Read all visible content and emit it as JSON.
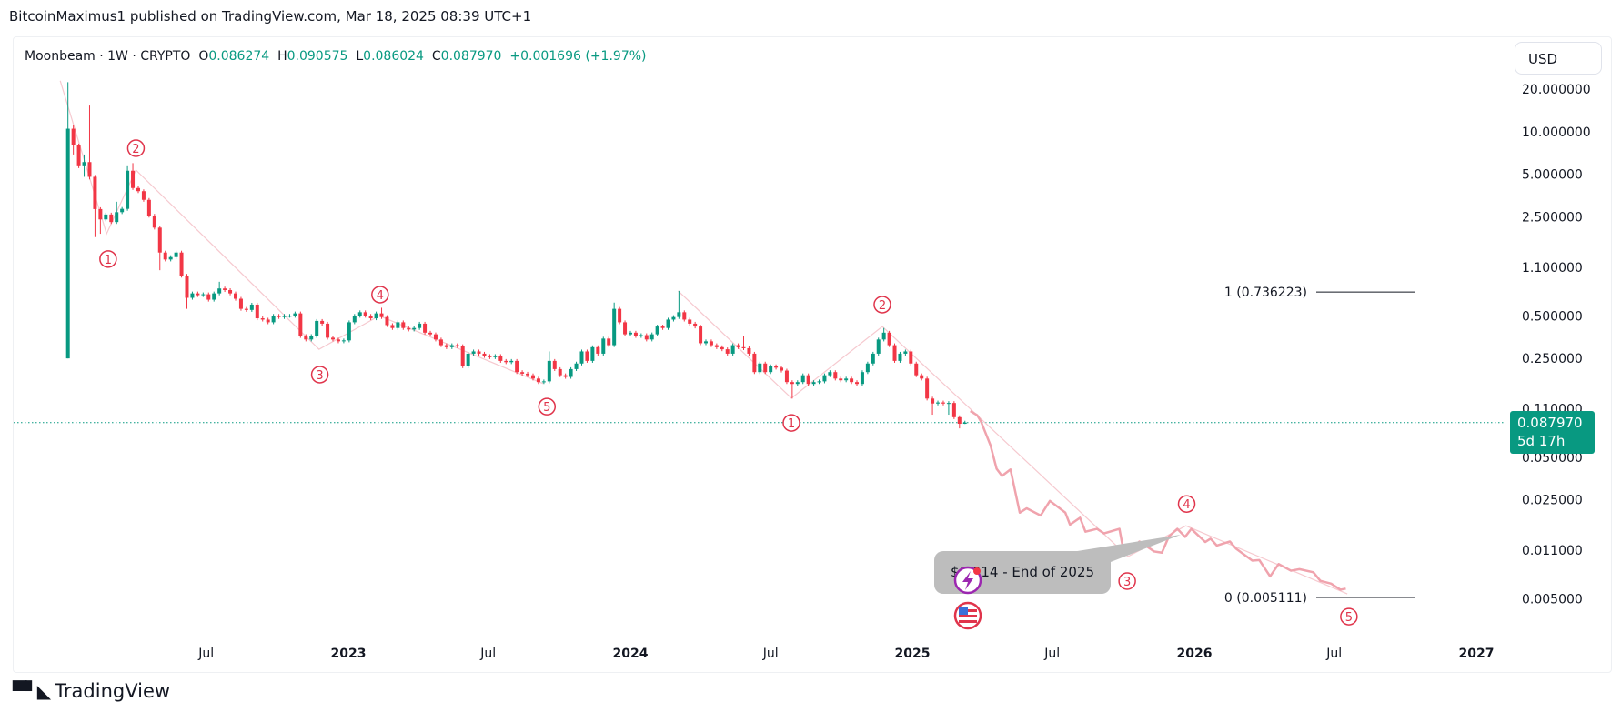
{
  "header": {
    "publisher_line": "BitcoinMaximus1 published on TradingView.com, Mar 18, 2025 08:39 UTC+1"
  },
  "legend": {
    "title": "Moonbeam · 1W · CRYPTO",
    "o_label": "O",
    "o": "0.086274",
    "h_label": "H",
    "h": "0.090575",
    "l_label": "L",
    "l": "0.086024",
    "c_label": "C",
    "c": "0.087970",
    "change": "+0.001696 (+1.97%)"
  },
  "currency": "USD",
  "current_price": {
    "value": "0.087970",
    "countdown": "5d 17h"
  },
  "callout": {
    "text": "$0.014 - End of 2025",
    "icons": [
      "lightning-icon",
      "us-flag-icon"
    ]
  },
  "footer": {
    "logo_text": "TradingView"
  },
  "colors": {
    "up": "#089981",
    "down": "#f23645",
    "wave_label": "#e0344b",
    "projection": "#f0a3ad",
    "wave_line": "#f6c9cf",
    "fib_line": "#131722",
    "callout_bg": "#bdbdbd"
  },
  "chart_data": {
    "type": "candlestick",
    "interval": "1W",
    "y_scale": "log",
    "ylim": [
      0.0035,
      24
    ],
    "grid": false,
    "y_ticks": [
      "20.000000",
      "10.000000",
      "5.000000",
      "2.500000",
      "1.100000",
      "0.500000",
      "0.250000",
      "0.110000",
      "0.050000",
      "0.025000",
      "0.011000",
      "0.005000"
    ],
    "x_ticks": [
      {
        "label": "Jul",
        "date": "2022-07-01",
        "major": false
      },
      {
        "label": "2023",
        "date": "2023-01-01",
        "major": true
      },
      {
        "label": "Jul",
        "date": "2023-07-01",
        "major": false
      },
      {
        "label": "2024",
        "date": "2024-01-01",
        "major": true
      },
      {
        "label": "Jul",
        "date": "2024-07-01",
        "major": false
      },
      {
        "label": "2025",
        "date": "2025-01-01",
        "major": true
      },
      {
        "label": "Jul",
        "date": "2025-07-01",
        "major": false
      },
      {
        "label": "2026",
        "date": "2026-01-01",
        "major": true
      },
      {
        "label": "Jul",
        "date": "2026-07-01",
        "major": false
      },
      {
        "label": "2027",
        "date": "2027-01-01",
        "major": true
      }
    ],
    "candles": {
      "first_week": "2022-01-03",
      "first_open": 0.25,
      "closes": [
        10.5,
        8.0,
        5.7,
        6.1,
        4.8,
        2.84,
        2.4,
        2.6,
        2.3,
        2.7,
        2.85,
        5.3,
        4.0,
        3.8,
        3.3,
        2.55,
        2.1,
        1.4,
        1.25,
        1.3,
        1.4,
        0.96,
        0.67,
        0.72,
        0.7,
        0.71,
        0.65,
        0.72,
        0.78,
        0.76,
        0.72,
        0.66,
        0.56,
        0.55,
        0.6,
        0.48,
        0.47,
        0.45,
        0.5,
        0.49,
        0.5,
        0.5,
        0.52,
        0.36,
        0.34,
        0.36,
        0.46,
        0.44,
        0.35,
        0.34,
        0.33,
        0.335,
        0.45,
        0.5,
        0.53,
        0.5,
        0.48,
        0.52,
        0.49,
        0.43,
        0.41,
        0.45,
        0.41,
        0.4,
        0.41,
        0.44,
        0.38,
        0.37,
        0.34,
        0.31,
        0.3,
        0.31,
        0.305,
        0.22,
        0.27,
        0.28,
        0.27,
        0.26,
        0.255,
        0.26,
        0.24,
        0.235,
        0.24,
        0.2,
        0.195,
        0.19,
        0.18,
        0.17,
        0.172,
        0.24,
        0.21,
        0.19,
        0.185,
        0.21,
        0.23,
        0.28,
        0.24,
        0.3,
        0.27,
        0.345,
        0.31,
        0.56,
        0.45,
        0.37,
        0.38,
        0.36,
        0.365,
        0.34,
        0.37,
        0.42,
        0.41,
        0.47,
        0.49,
        0.53,
        0.47,
        0.44,
        0.42,
        0.32,
        0.33,
        0.31,
        0.3,
        0.29,
        0.27,
        0.31,
        0.3,
        0.295,
        0.27,
        0.2,
        0.23,
        0.2,
        0.22,
        0.215,
        0.205,
        0.17,
        0.165,
        0.17,
        0.19,
        0.165,
        0.17,
        0.172,
        0.19,
        0.2,
        0.18,
        0.175,
        0.18,
        0.17,
        0.165,
        0.2,
        0.23,
        0.27,
        0.34,
        0.38,
        0.31,
        0.24,
        0.27,
        0.28,
        0.23,
        0.19,
        0.18,
        0.13,
        0.12,
        0.122,
        0.12,
        0.121,
        0.096,
        0.086274,
        0.08797
      ],
      "wick_extremes": [
        {
          "week": 0,
          "high": 22.4,
          "low": 0.25
        },
        {
          "week": 1,
          "high": 11.2,
          "low": 6.9
        },
        {
          "week": 3,
          "high": 6.9,
          "low": 4.8
        },
        {
          "week": 4,
          "high": 15.3,
          "low": 4.6
        },
        {
          "week": 5,
          "low": 1.8
        },
        {
          "week": 6,
          "low": 1.9
        },
        {
          "week": 9,
          "high": 3.2
        },
        {
          "week": 11,
          "high": 5.7
        },
        {
          "week": 12,
          "high": 6.0
        },
        {
          "week": 17,
          "low": 1.05
        },
        {
          "week": 22,
          "low": 0.56
        },
        {
          "week": 28,
          "high": 0.87
        },
        {
          "week": 58,
          "high": 0.57
        },
        {
          "week": 89,
          "high": 0.28
        },
        {
          "week": 101,
          "high": 0.62
        },
        {
          "week": 113,
          "high": 0.75
        },
        {
          "week": 125,
          "high": 0.36
        },
        {
          "week": 134,
          "low": 0.13
        },
        {
          "week": 151,
          "high": 0.41
        },
        {
          "week": 160,
          "low": 0.1
        },
        {
          "week": 163,
          "low": 0.1
        },
        {
          "week": 165,
          "low": 0.08
        },
        {
          "week": 166,
          "high": 0.090575,
          "low": 0.086024
        }
      ]
    },
    "current_price": 0.08797,
    "projection": [
      [
        "2025-03-17",
        0.106
      ],
      [
        "2025-03-26",
        0.099
      ],
      [
        "2025-03-31",
        0.089
      ],
      [
        "2025-04-12",
        0.061
      ],
      [
        "2025-04-20",
        0.0415
      ],
      [
        "2025-04-27",
        0.0369
      ],
      [
        "2025-05-08",
        0.041
      ],
      [
        "2025-05-20",
        0.0203
      ],
      [
        "2025-05-29",
        0.0218
      ],
      [
        "2025-06-16",
        0.0194
      ],
      [
        "2025-06-28",
        0.0246
      ],
      [
        "2025-07-18",
        0.0203
      ],
      [
        "2025-07-24",
        0.0167
      ],
      [
        "2025-08-06",
        0.0187
      ],
      [
        "2025-08-13",
        0.0149
      ],
      [
        "2025-08-28",
        0.0156
      ],
      [
        "2025-09-06",
        0.0145
      ],
      [
        "2025-09-26",
        0.0156
      ],
      [
        "2025-09-30",
        0.0119
      ],
      [
        "2025-10-07",
        0.0108
      ],
      [
        "2025-10-22",
        0.0127
      ],
      [
        "2025-11-10",
        0.0108
      ],
      [
        "2025-11-20",
        0.0106
      ],
      [
        "2025-11-29",
        0.0138
      ],
      [
        "2025-12-10",
        0.0156
      ],
      [
        "2025-12-20",
        0.0137
      ],
      [
        "2025-12-28",
        0.0156
      ],
      [
        "2026-01-15",
        0.0126
      ],
      [
        "2026-01-22",
        0.0133
      ],
      [
        "2026-01-30",
        0.0119
      ],
      [
        "2026-02-16",
        0.0127
      ],
      [
        "2026-02-24",
        0.0113
      ],
      [
        "2026-03-17",
        0.0093
      ],
      [
        "2026-03-26",
        0.0094
      ],
      [
        "2026-04-09",
        0.0072
      ],
      [
        "2026-04-20",
        0.0088
      ],
      [
        "2026-05-06",
        0.0079
      ],
      [
        "2026-05-17",
        0.0081
      ],
      [
        "2026-06-04",
        0.0077
      ],
      [
        "2026-06-13",
        0.0067
      ],
      [
        "2026-06-27",
        0.0064
      ],
      [
        "2026-07-09",
        0.0058
      ],
      [
        "2026-07-16",
        0.0059
      ]
    ],
    "wave_lines": [
      [
        [
          "2021-12-24",
          22.9
        ],
        [
          "2022-02-22",
          1.9
        ],
        [
          "2022-04-01",
          5.36
        ],
        [
          "2022-11-24",
          0.29
        ],
        [
          "2023-02-10",
          0.5
        ],
        [
          "2023-09-10",
          0.166
        ]
      ],
      [
        [
          "2024-03-03",
          0.75
        ],
        [
          "2024-07-28",
          0.131
        ],
        [
          "2024-11-23",
          0.42
        ],
        [
          "2025-10-07",
          0.00995
        ],
        [
          "2025-12-21",
          0.0164
        ],
        [
          "2026-07-18",
          0.00542
        ]
      ]
    ],
    "wave_labels": [
      {
        "text": "1",
        "date": "2022-02-24",
        "price": 1.26
      },
      {
        "text": "2",
        "date": "2022-04-01",
        "price": 7.64
      },
      {
        "text": "3",
        "date": "2022-11-25",
        "price": 0.192
      },
      {
        "text": "4",
        "date": "2023-02-11",
        "price": 0.706
      },
      {
        "text": "5",
        "date": "2023-09-15",
        "price": 0.114
      },
      {
        "text": "1",
        "date": "2024-07-28",
        "price": 0.0875
      },
      {
        "text": "2",
        "date": "2024-11-23",
        "price": 0.6
      },
      {
        "text": "3",
        "date": "2025-10-06",
        "price": 0.00667
      },
      {
        "text": "4",
        "date": "2025-12-22",
        "price": 0.0234
      },
      {
        "text": "5",
        "date": "2026-07-20",
        "price": 0.00374
      }
    ],
    "fib_levels": [
      {
        "label": "1 (0.736223)",
        "price": 0.736223
      },
      {
        "label": "0 (0.005111)",
        "price": 0.005111
      }
    ]
  }
}
